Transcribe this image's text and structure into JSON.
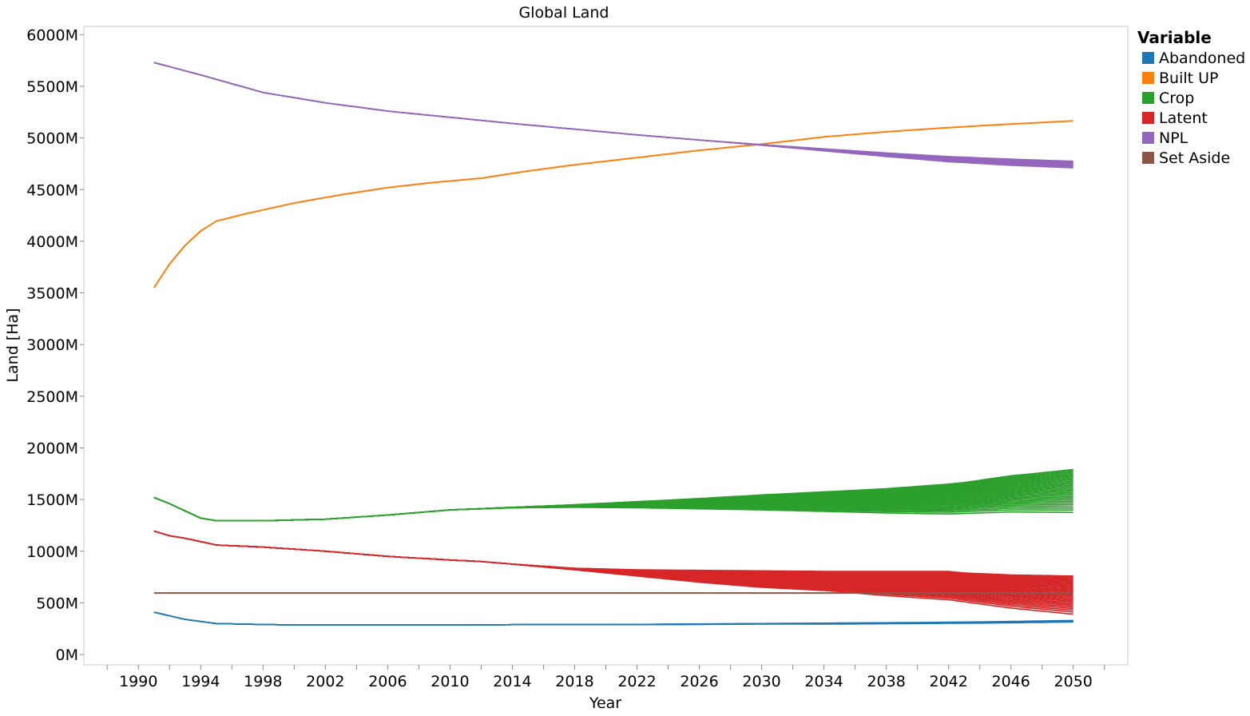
{
  "chart_data": {
    "type": "line",
    "title": "Global Land",
    "xlabel": "Year",
    "ylabel": "Land [Ha]",
    "xlim": [
      1986.5,
      2053.5
    ],
    "ylim": [
      -100,
      6080
    ],
    "x_ticks": [
      1990,
      1994,
      1998,
      2002,
      2006,
      2010,
      2014,
      2018,
      2022,
      2026,
      2030,
      2034,
      2038,
      2042,
      2046,
      2050
    ],
    "x_tick_labels": [
      "1990",
      "1994",
      "1998",
      "2002",
      "2006",
      "2010",
      "2014",
      "2018",
      "2022",
      "2026",
      "2030",
      "2034",
      "2038",
      "2042",
      "2046",
      "2050"
    ],
    "y_ticks": [
      0,
      500,
      1000,
      1500,
      2000,
      2500,
      3000,
      3500,
      4000,
      4500,
      5000,
      5500,
      6000
    ],
    "y_tick_labels": [
      "0M",
      "500M",
      "1000M",
      "1500M",
      "2000M",
      "2500M",
      "3000M",
      "3500M",
      "4000M",
      "4500M",
      "5000M",
      "5500M",
      "6000M"
    ],
    "y_unit": "M",
    "grid": false,
    "legend": {
      "title": "Variable",
      "placement": "right"
    },
    "series": [
      {
        "name": "Abandoned",
        "color": "#1f77b4",
        "x": [
          1991,
          1993,
          1995,
          2000,
          2005,
          2010,
          2015,
          2020,
          2025,
          2030,
          2035,
          2040,
          2045,
          2050
        ],
        "low": [
          410,
          340,
          300,
          285,
          285,
          285,
          290,
          290,
          290,
          295,
          295,
          300,
          305,
          315
        ],
        "high": [
          410,
          340,
          300,
          285,
          285,
          285,
          290,
          290,
          295,
          300,
          305,
          310,
          318,
          330
        ],
        "strands": 6
      },
      {
        "name": "Built UP",
        "color": "#ff7f0e",
        "x": [
          1991,
          1992,
          1993,
          1994,
          1995,
          1997,
          2000,
          2003,
          2006,
          2009,
          2012,
          2015,
          2018,
          2022,
          2026,
          2030,
          2034,
          2038,
          2042,
          2046,
          2050
        ],
        "low": [
          3550,
          3780,
          3960,
          4100,
          4195,
          4270,
          4370,
          4450,
          4520,
          4570,
          4610,
          4680,
          4740,
          4810,
          4880,
          4940,
          5010,
          5060,
          5100,
          5135,
          5165
        ],
        "high": [
          3550,
          3780,
          3960,
          4100,
          4195,
          4270,
          4370,
          4450,
          4520,
          4570,
          4610,
          4680,
          4740,
          4810,
          4880,
          4940,
          5010,
          5060,
          5100,
          5135,
          5165
        ],
        "strands": 1
      },
      {
        "name": "Crop",
        "color": "#2ca02c",
        "x": [
          1991,
          1992,
          1993,
          1994,
          1995,
          1998,
          2002,
          2006,
          2010,
          2014,
          2018,
          2022,
          2026,
          2030,
          2034,
          2038,
          2042,
          2043,
          2046,
          2050
        ],
        "low": [
          1520,
          1460,
          1390,
          1320,
          1295,
          1295,
          1310,
          1350,
          1400,
          1420,
          1425,
          1420,
          1410,
          1400,
          1385,
          1370,
          1360,
          1365,
          1380,
          1375
        ],
        "high": [
          1520,
          1460,
          1390,
          1320,
          1295,
          1295,
          1310,
          1350,
          1400,
          1425,
          1450,
          1480,
          1510,
          1545,
          1575,
          1605,
          1650,
          1665,
          1730,
          1790
        ],
        "strands": 30
      },
      {
        "name": "Latent",
        "color": "#d62728",
        "x": [
          1991,
          1992,
          1993,
          1995,
          1998,
          2002,
          2006,
          2010,
          2012,
          2014,
          2018,
          2022,
          2026,
          2030,
          2034,
          2038,
          2042,
          2043,
          2046,
          2050
        ],
        "low": [
          1195,
          1150,
          1125,
          1060,
          1040,
          1000,
          950,
          915,
          900,
          875,
          820,
          760,
          700,
          650,
          620,
          570,
          530,
          510,
          450,
          390
        ],
        "high": [
          1195,
          1150,
          1125,
          1060,
          1040,
          1000,
          950,
          915,
          900,
          875,
          835,
          820,
          815,
          810,
          805,
          805,
          805,
          790,
          770,
          760
        ],
        "strands": 30
      },
      {
        "name": "NPL",
        "color": "#9467bd",
        "x": [
          1991,
          1994,
          1998,
          2002,
          2006,
          2010,
          2014,
          2018,
          2022,
          2026,
          2030,
          2034,
          2038,
          2042,
          2046,
          2050
        ],
        "low": [
          5730,
          5610,
          5440,
          5340,
          5260,
          5200,
          5140,
          5085,
          5030,
          4980,
          4930,
          4875,
          4820,
          4770,
          4735,
          4710
        ],
        "high": [
          5730,
          5610,
          5440,
          5340,
          5260,
          5200,
          5140,
          5085,
          5030,
          4980,
          4935,
          4895,
          4855,
          4820,
          4795,
          4775
        ],
        "strands": 10
      },
      {
        "name": "Set Aside",
        "color": "#8c564b",
        "x": [
          1991,
          2050
        ],
        "low": [
          595,
          595
        ],
        "high": [
          595,
          595
        ],
        "strands": 1
      }
    ]
  }
}
